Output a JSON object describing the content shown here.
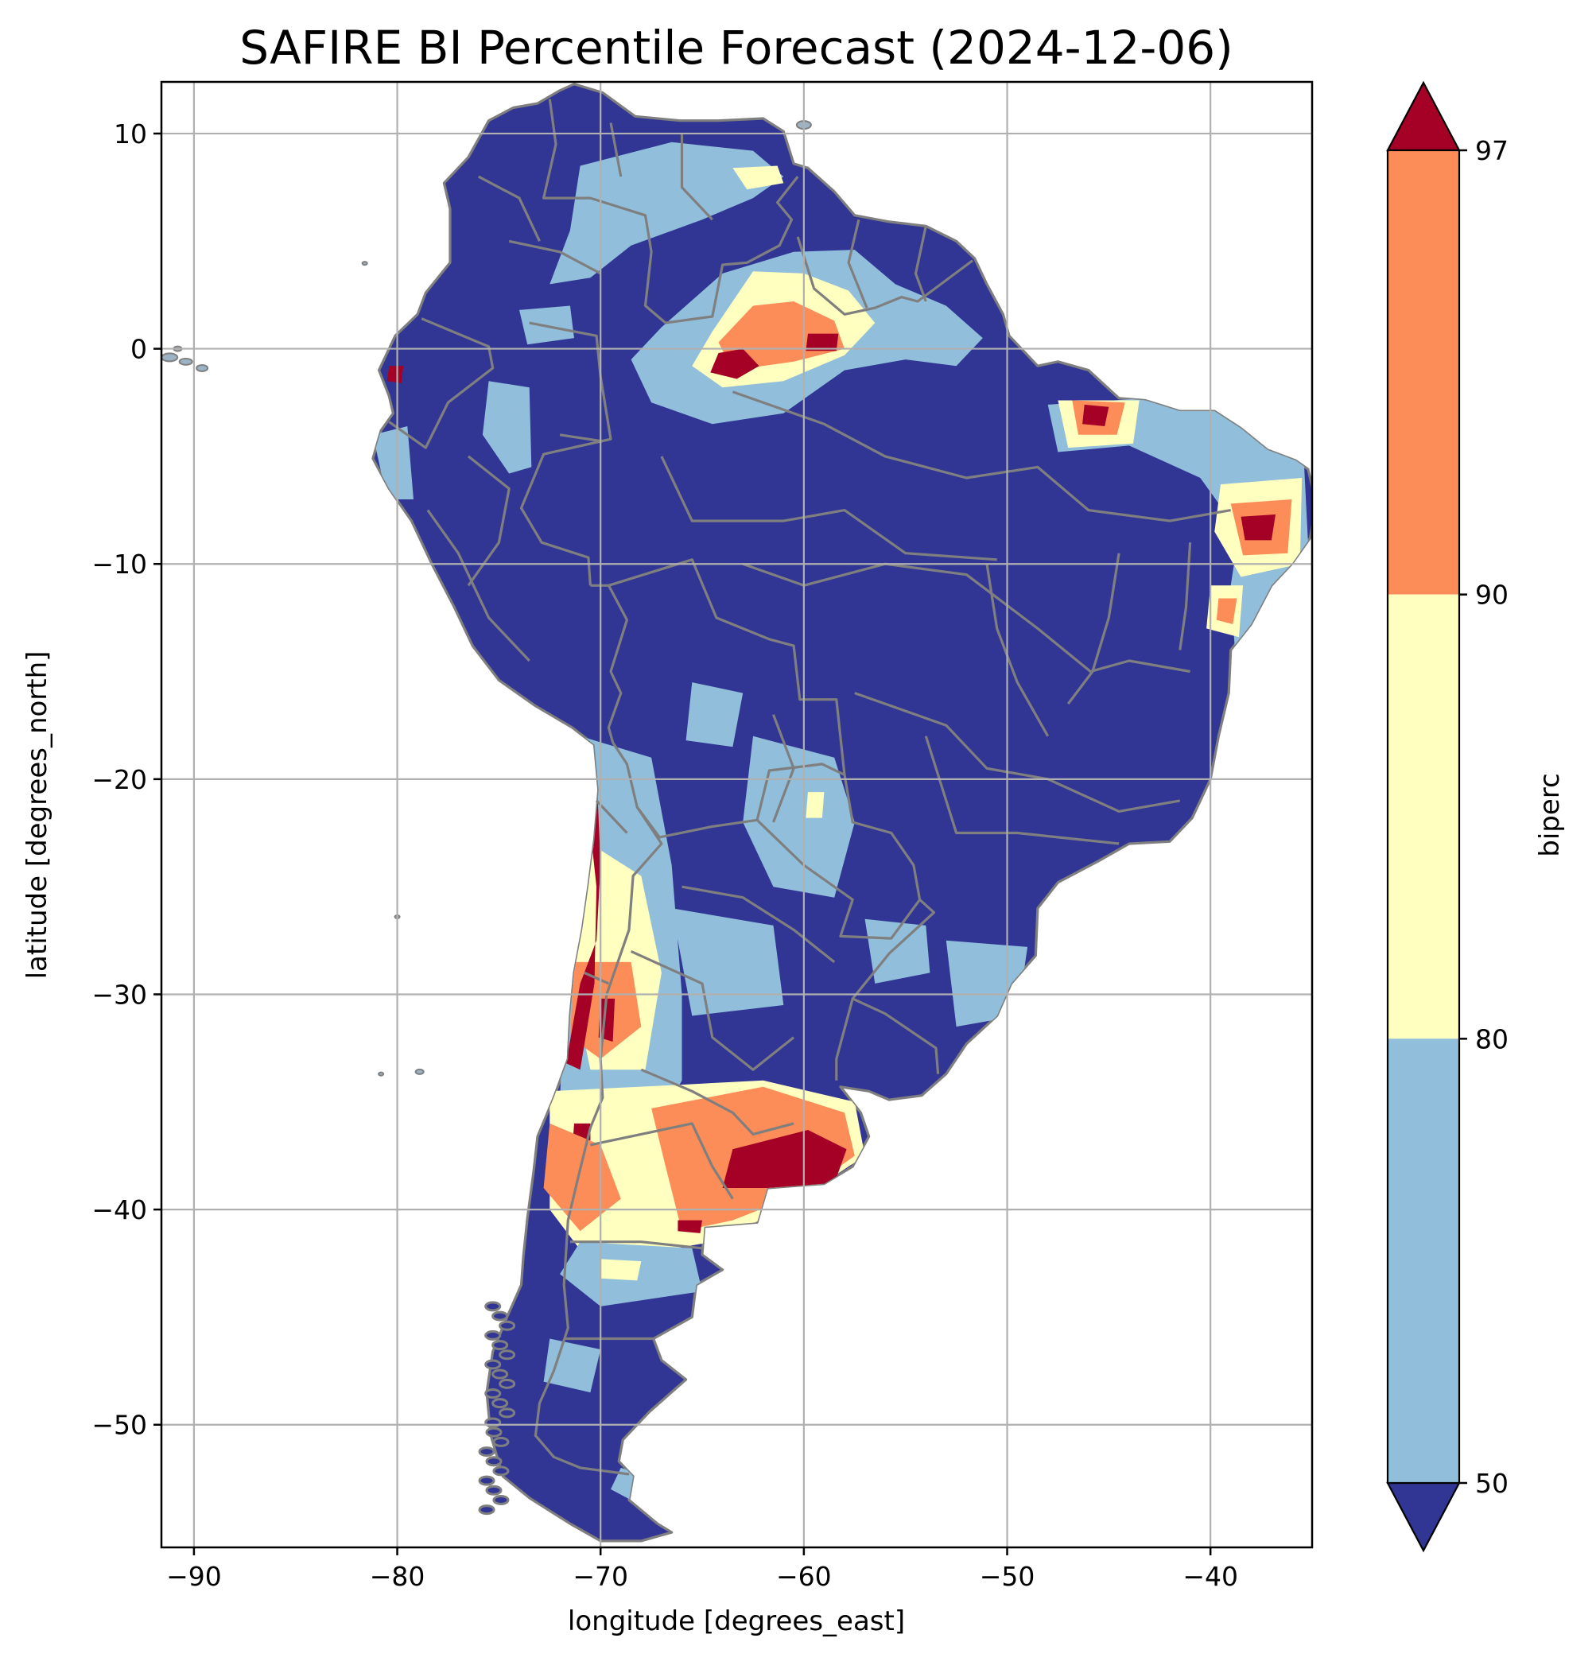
{
  "title": "SAFIRE BI Percentile Forecast (2024-12-06)",
  "map": {
    "lon_range": [
      -91.6,
      -35.0
    ],
    "lat_range": [
      -55.7,
      12.4
    ],
    "xticks": [
      -90,
      -80,
      -70,
      -60,
      -50,
      -40
    ],
    "yticks": [
      10,
      0,
      -10,
      -20,
      -30,
      -40,
      -50
    ],
    "xtick_labels": [
      "−90",
      "−80",
      "−70",
      "−60",
      "−50",
      "−40"
    ],
    "ytick_labels": [
      "10",
      "0",
      "−10",
      "−20",
      "−30",
      "−40",
      "−50"
    ],
    "xlabel": "longitude [degrees_east]",
    "ylabel": "latitude [degrees_north]",
    "grid": true,
    "background_class_color": "#313695"
  },
  "colorbar": {
    "label": "biperc",
    "ticks": [
      "97",
      "90",
      "80",
      "50"
    ],
    "bins": [
      {
        "range": "<50",
        "color": "#313695"
      },
      {
        "range": "50-80",
        "color": "#91bfdb"
      },
      {
        "range": "80-90",
        "color": "#ffffbf"
      },
      {
        "range": "90-97",
        "color": "#fc8d59"
      },
      {
        "range": ">97",
        "color": "#a50026"
      }
    ]
  }
}
